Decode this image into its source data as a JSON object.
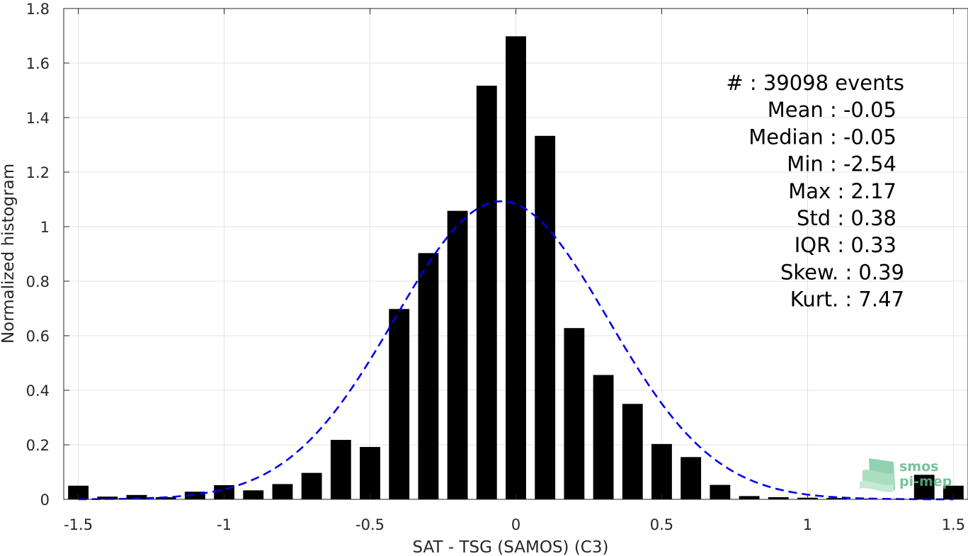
{
  "chart_data": {
    "type": "bar",
    "xlabel": "SAT - TSG (SAMOS) (C3)",
    "ylabel": "Normalized histogram",
    "xlim": [
      -1.55,
      1.55
    ],
    "ylim": [
      0,
      1.8
    ],
    "xticks": [
      -1.5,
      -1,
      -0.5,
      0,
      0.5,
      1,
      1.5
    ],
    "xtick_labels": [
      "-1.5",
      "-1",
      "-0.5",
      "0",
      "0.5",
      "1",
      "1.5"
    ],
    "yticks": [
      0,
      0.2,
      0.4,
      0.6,
      0.8,
      1,
      1.2,
      1.4,
      1.6,
      1.8
    ],
    "ytick_labels": [
      "0",
      "0.2",
      "0.4",
      "0.6",
      "0.8",
      "1",
      "1.2",
      "1.4",
      "1.6",
      "1.8"
    ],
    "grid": true,
    "bar_color": "#000000",
    "bar_width": 0.07,
    "x": [
      -1.5,
      -1.4,
      -1.3,
      -1.2,
      -1.1,
      -1.0,
      -0.9,
      -0.8,
      -0.7,
      -0.6,
      -0.5,
      -0.4,
      -0.3,
      -0.2,
      -0.1,
      0.0,
      0.1,
      0.2,
      0.3,
      0.4,
      0.5,
      0.6,
      0.7,
      0.8,
      0.9,
      1.0,
      1.1,
      1.2,
      1.3,
      1.4,
      1.5
    ],
    "values": [
      0.05,
      0.01,
      0.016,
      0.008,
      0.028,
      0.052,
      0.033,
      0.056,
      0.097,
      0.218,
      0.192,
      0.698,
      0.903,
      1.058,
      1.517,
      1.698,
      1.333,
      0.628,
      0.456,
      0.35,
      0.203,
      0.155,
      0.053,
      0.012,
      0.008,
      0.006,
      0.005,
      0.003,
      0.002,
      0.09,
      0.05
    ],
    "fit_curve": {
      "style": "dashed",
      "color": "#0000ee",
      "distribution": "normal",
      "mean": -0.05,
      "std": 0.365
    },
    "annotation": {
      "lines": [
        "#  : 39098 events",
        "Mean : -0.05",
        "Median : -0.05",
        "Min : -2.54",
        "Max : 2.17",
        "Std : 0.38",
        "IQR : 0.33",
        "Skew. : 0.39",
        "Kurt. : 7.47"
      ]
    },
    "logo": {
      "line1": "smos",
      "line2": "pi-mep",
      "color": "#5fb88a"
    }
  }
}
